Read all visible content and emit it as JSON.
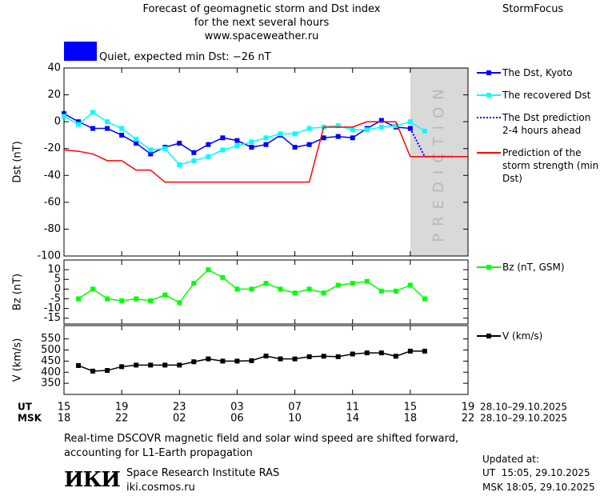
{
  "header": {
    "title": [
      "Forecast of geomagnetic storm and Dst index",
      "for the next several hours",
      "www.spaceweather.ru"
    ],
    "brand": "StormFocus"
  },
  "chart_data": [
    {
      "type": "line",
      "status": "Quiet, expected min Dst: −26 nT",
      "status_color": "#0000ff",
      "y_label": "Dst (nT)",
      "xlim": [
        0,
        28
      ],
      "ylim": [
        -100,
        40
      ],
      "yticks": [
        40,
        20,
        0,
        -20,
        -40,
        -60,
        -80,
        -100
      ],
      "shaded_xrange": [
        24,
        28
      ],
      "shaded_label": "PREDICTION",
      "series": [
        {
          "name": "The Dst, Kyoto",
          "color": "#0000ff",
          "marker": "square",
          "x": [
            0,
            1,
            2,
            3,
            4,
            5,
            6,
            7,
            8,
            9,
            10,
            11,
            12,
            13,
            14,
            15,
            16,
            17,
            18,
            19,
            20,
            21,
            22,
            23,
            24
          ],
          "values": [
            6,
            0,
            -5,
            -5,
            -10,
            -16,
            -24,
            -19,
            -16,
            -23,
            -17,
            -12,
            -14,
            -19,
            -17,
            -10,
            -19,
            -17,
            -12,
            -11,
            -12,
            -5,
            1,
            -4,
            -5
          ]
        },
        {
          "name": "The recovered Dst",
          "color": "#00ffff",
          "marker": "square",
          "x": [
            0,
            1,
            2,
            3,
            4,
            5,
            6,
            7,
            8,
            9,
            10,
            11,
            12,
            13,
            14,
            15,
            16,
            17,
            18,
            19,
            20,
            21,
            22,
            23,
            24,
            25
          ],
          "values": [
            4,
            -2,
            7,
            0,
            -5,
            -13,
            -21,
            -20,
            -32,
            -29,
            -26,
            -21,
            -18,
            -15,
            -12,
            -9,
            -9,
            -5,
            -4,
            -3,
            -6,
            -6,
            -4,
            -3,
            0,
            -7
          ]
        },
        {
          "name": "The Dst prediction 2-4 hours ahead",
          "color": "#0000ff",
          "linestyle": "dotted",
          "x": [
            24,
            25,
            27
          ],
          "values": [
            -5,
            -26,
            -26
          ]
        },
        {
          "name": "Prediction of the storm strength (min Dst)",
          "color": "#ff0000",
          "x": [
            0,
            1,
            2,
            3,
            4,
            5,
            6,
            7,
            17,
            18,
            20,
            21,
            23,
            24,
            28
          ],
          "values": [
            -21,
            -22,
            -24,
            -29,
            -29,
            -36,
            -36,
            -45,
            -45,
            -4,
            -4,
            0,
            0,
            -26,
            -26
          ]
        }
      ]
    },
    {
      "type": "line",
      "y_label": "Bz (nT)",
      "xlim": [
        0,
        28
      ],
      "ylim": [
        -18,
        15
      ],
      "yticks": [
        10,
        5,
        0,
        -5,
        -10,
        -15
      ],
      "series": [
        {
          "name": "Bz (nT, GSM)",
          "color": "#00ff00",
          "marker": "square",
          "x": [
            1,
            2,
            3,
            4,
            5,
            6,
            7,
            8,
            9,
            10,
            11,
            12,
            13,
            14,
            15,
            16,
            17,
            18,
            19,
            20,
            21,
            22,
            23,
            24,
            25
          ],
          "values": [
            -5,
            0,
            -5,
            -6,
            -5,
            -6,
            -3,
            -7,
            3,
            10,
            6,
            0,
            0,
            3,
            0,
            -2,
            0,
            -2,
            2,
            3,
            4,
            -1,
            -1,
            2,
            -5
          ]
        }
      ]
    },
    {
      "type": "line",
      "y_label": "V (km/s)",
      "xlim": [
        0,
        28
      ],
      "ylim": [
        300,
        610
      ],
      "yticks": [
        550,
        500,
        450,
        400,
        350
      ],
      "xticks": [
        {
          "value": 0,
          "label": "15"
        },
        {
          "value": 4,
          "label": "19"
        },
        {
          "value": 8,
          "label": "23"
        },
        {
          "value": 12,
          "label": "03"
        },
        {
          "value": 16,
          "label": "07"
        },
        {
          "value": 20,
          "label": "11"
        },
        {
          "value": 24,
          "label": "15"
        },
        {
          "value": 28,
          "label": "19"
        }
      ],
      "xticks_msk": [
        {
          "value": 0,
          "label": "18"
        },
        {
          "value": 4,
          "label": "22"
        },
        {
          "value": 8,
          "label": "02"
        },
        {
          "value": 12,
          "label": "06"
        },
        {
          "value": 16,
          "label": "10"
        },
        {
          "value": 20,
          "label": "14"
        },
        {
          "value": 24,
          "label": "18"
        },
        {
          "value": 28,
          "label": "22"
        }
      ],
      "x_axis_names": [
        "UT",
        "MSK"
      ],
      "date_range": [
        "28.10–29.10.2025",
        "28.10–29.10.2025"
      ],
      "series": [
        {
          "name": "V (km/s)",
          "color": "#000000",
          "marker": "square",
          "x": [
            1,
            2,
            3,
            4,
            5,
            6,
            7,
            8,
            9,
            10,
            11,
            12,
            13,
            14,
            15,
            16,
            17,
            18,
            19,
            20,
            21,
            22,
            23,
            24,
            25
          ],
          "values": [
            430,
            405,
            408,
            425,
            432,
            432,
            432,
            432,
            447,
            460,
            450,
            450,
            452,
            473,
            460,
            460,
            470,
            472,
            470,
            482,
            487,
            487,
            472,
            495,
            495
          ]
        }
      ]
    }
  ],
  "footer": {
    "note": "Real-time DSCOVR magnetic field and solar wind speed are shifted forward, accounting for L1-Earth propagation",
    "logo": "ИКИ",
    "institute": "Space Research Institute RAS",
    "url": "iki.cosmos.ru",
    "updated": {
      "title": "Updated at:",
      "ut": "UT  15:05, 29.10.2025",
      "msk": "MSK 18:05, 29.10.2025"
    }
  }
}
